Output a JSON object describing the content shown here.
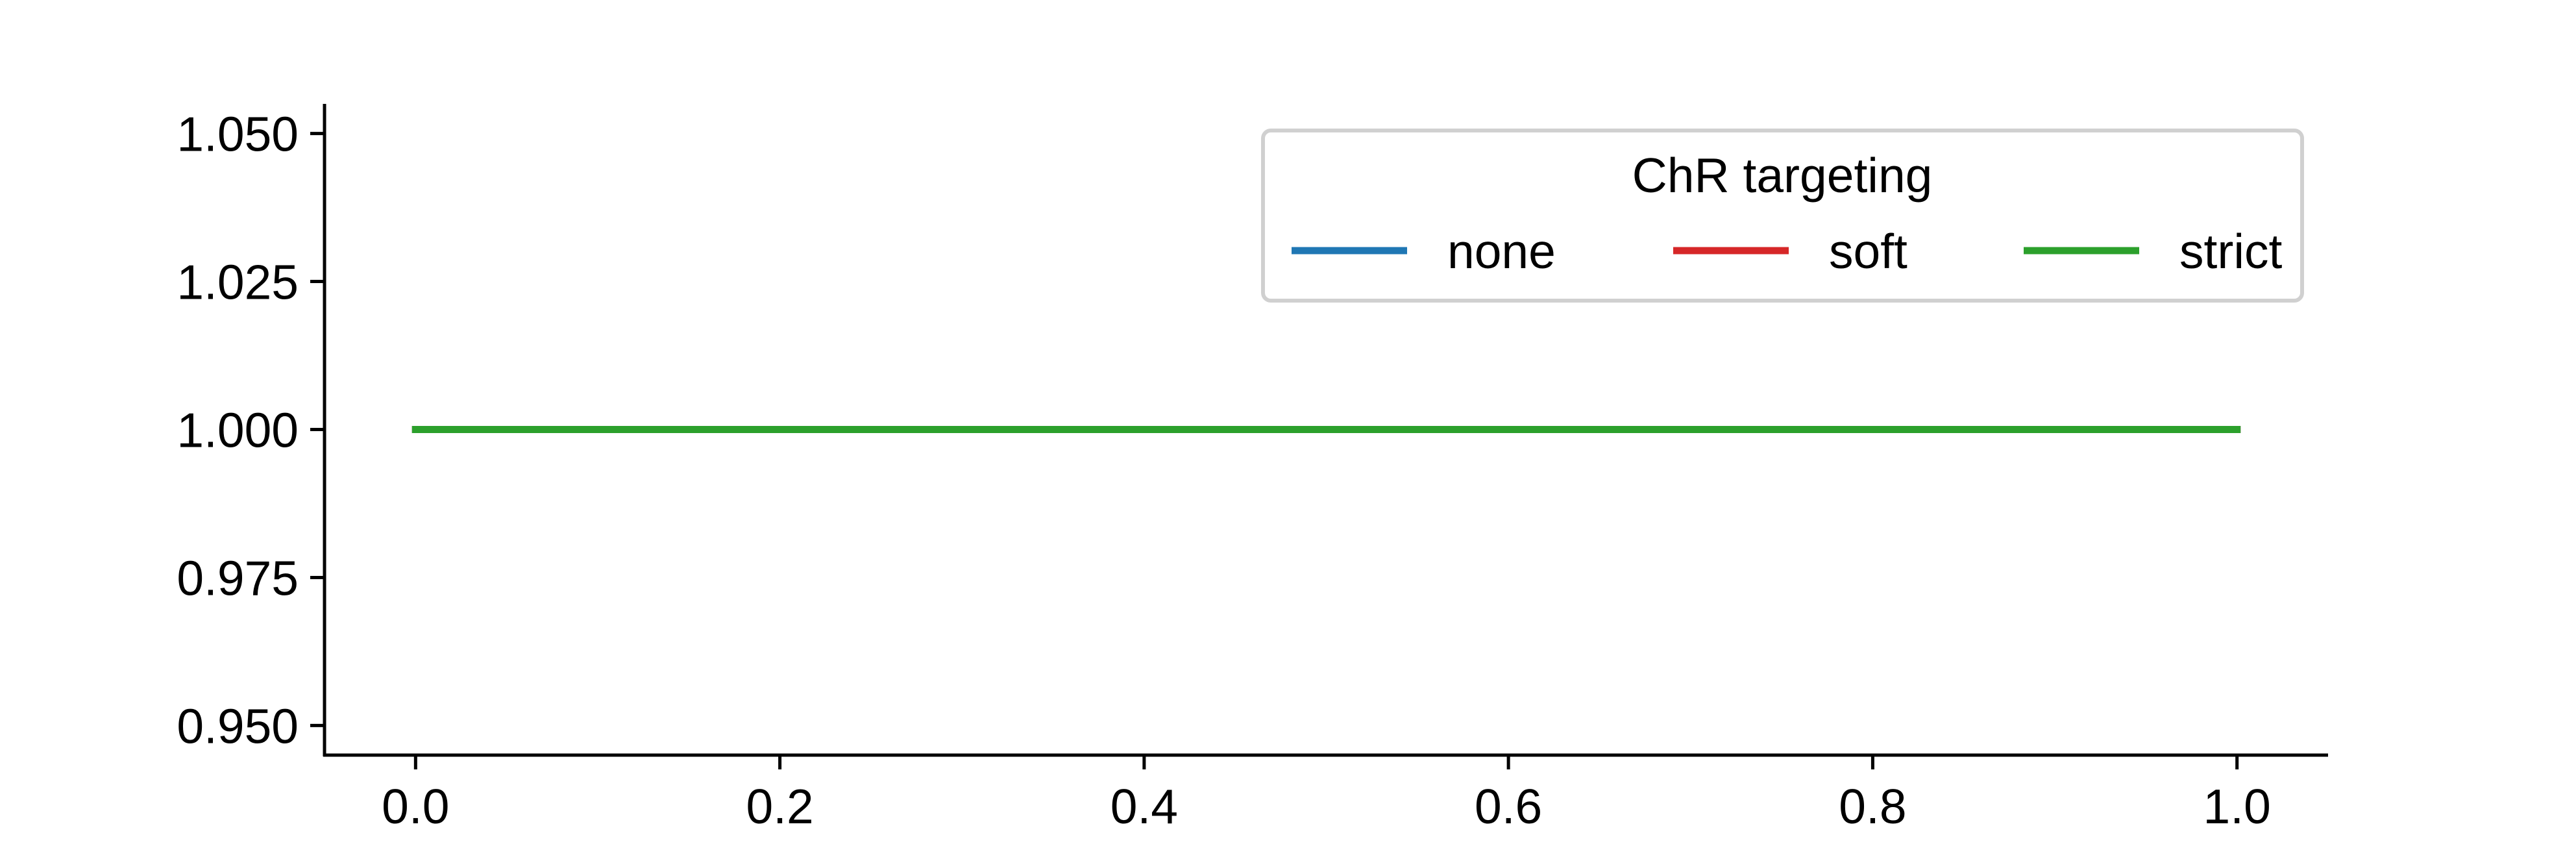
{
  "chart_data": {
    "type": "line",
    "title": "",
    "xlabel": "",
    "ylabel": "",
    "xlim": [
      -0.05,
      1.05
    ],
    "ylim": [
      0.945,
      1.055
    ],
    "xticks": [
      0.0,
      0.2,
      0.4,
      0.6,
      0.8,
      1.0
    ],
    "xtick_labels": [
      "0.0",
      "0.2",
      "0.4",
      "0.6",
      "0.8",
      "1.0"
    ],
    "yticks": [
      0.95,
      0.975,
      1.0,
      1.025,
      1.05
    ],
    "ytick_labels": [
      "0.950",
      "0.975",
      "1.000",
      "1.025",
      "1.050"
    ],
    "grid": false,
    "legend": {
      "title": "ChR targeting",
      "placement": "upper-right",
      "columns": 3
    },
    "series": [
      {
        "name": "none",
        "color": "#1f77b4",
        "x": [
          0.0,
          1.0
        ],
        "y": [
          1.0,
          1.0
        ]
      },
      {
        "name": "soft",
        "color": "#d62728",
        "x": [
          0.0,
          1.0
        ],
        "y": [
          1.0,
          1.0
        ]
      },
      {
        "name": "strict",
        "color": "#2ca02c",
        "x": [
          0.0,
          1.0
        ],
        "y": [
          1.0,
          1.0
        ]
      }
    ]
  }
}
